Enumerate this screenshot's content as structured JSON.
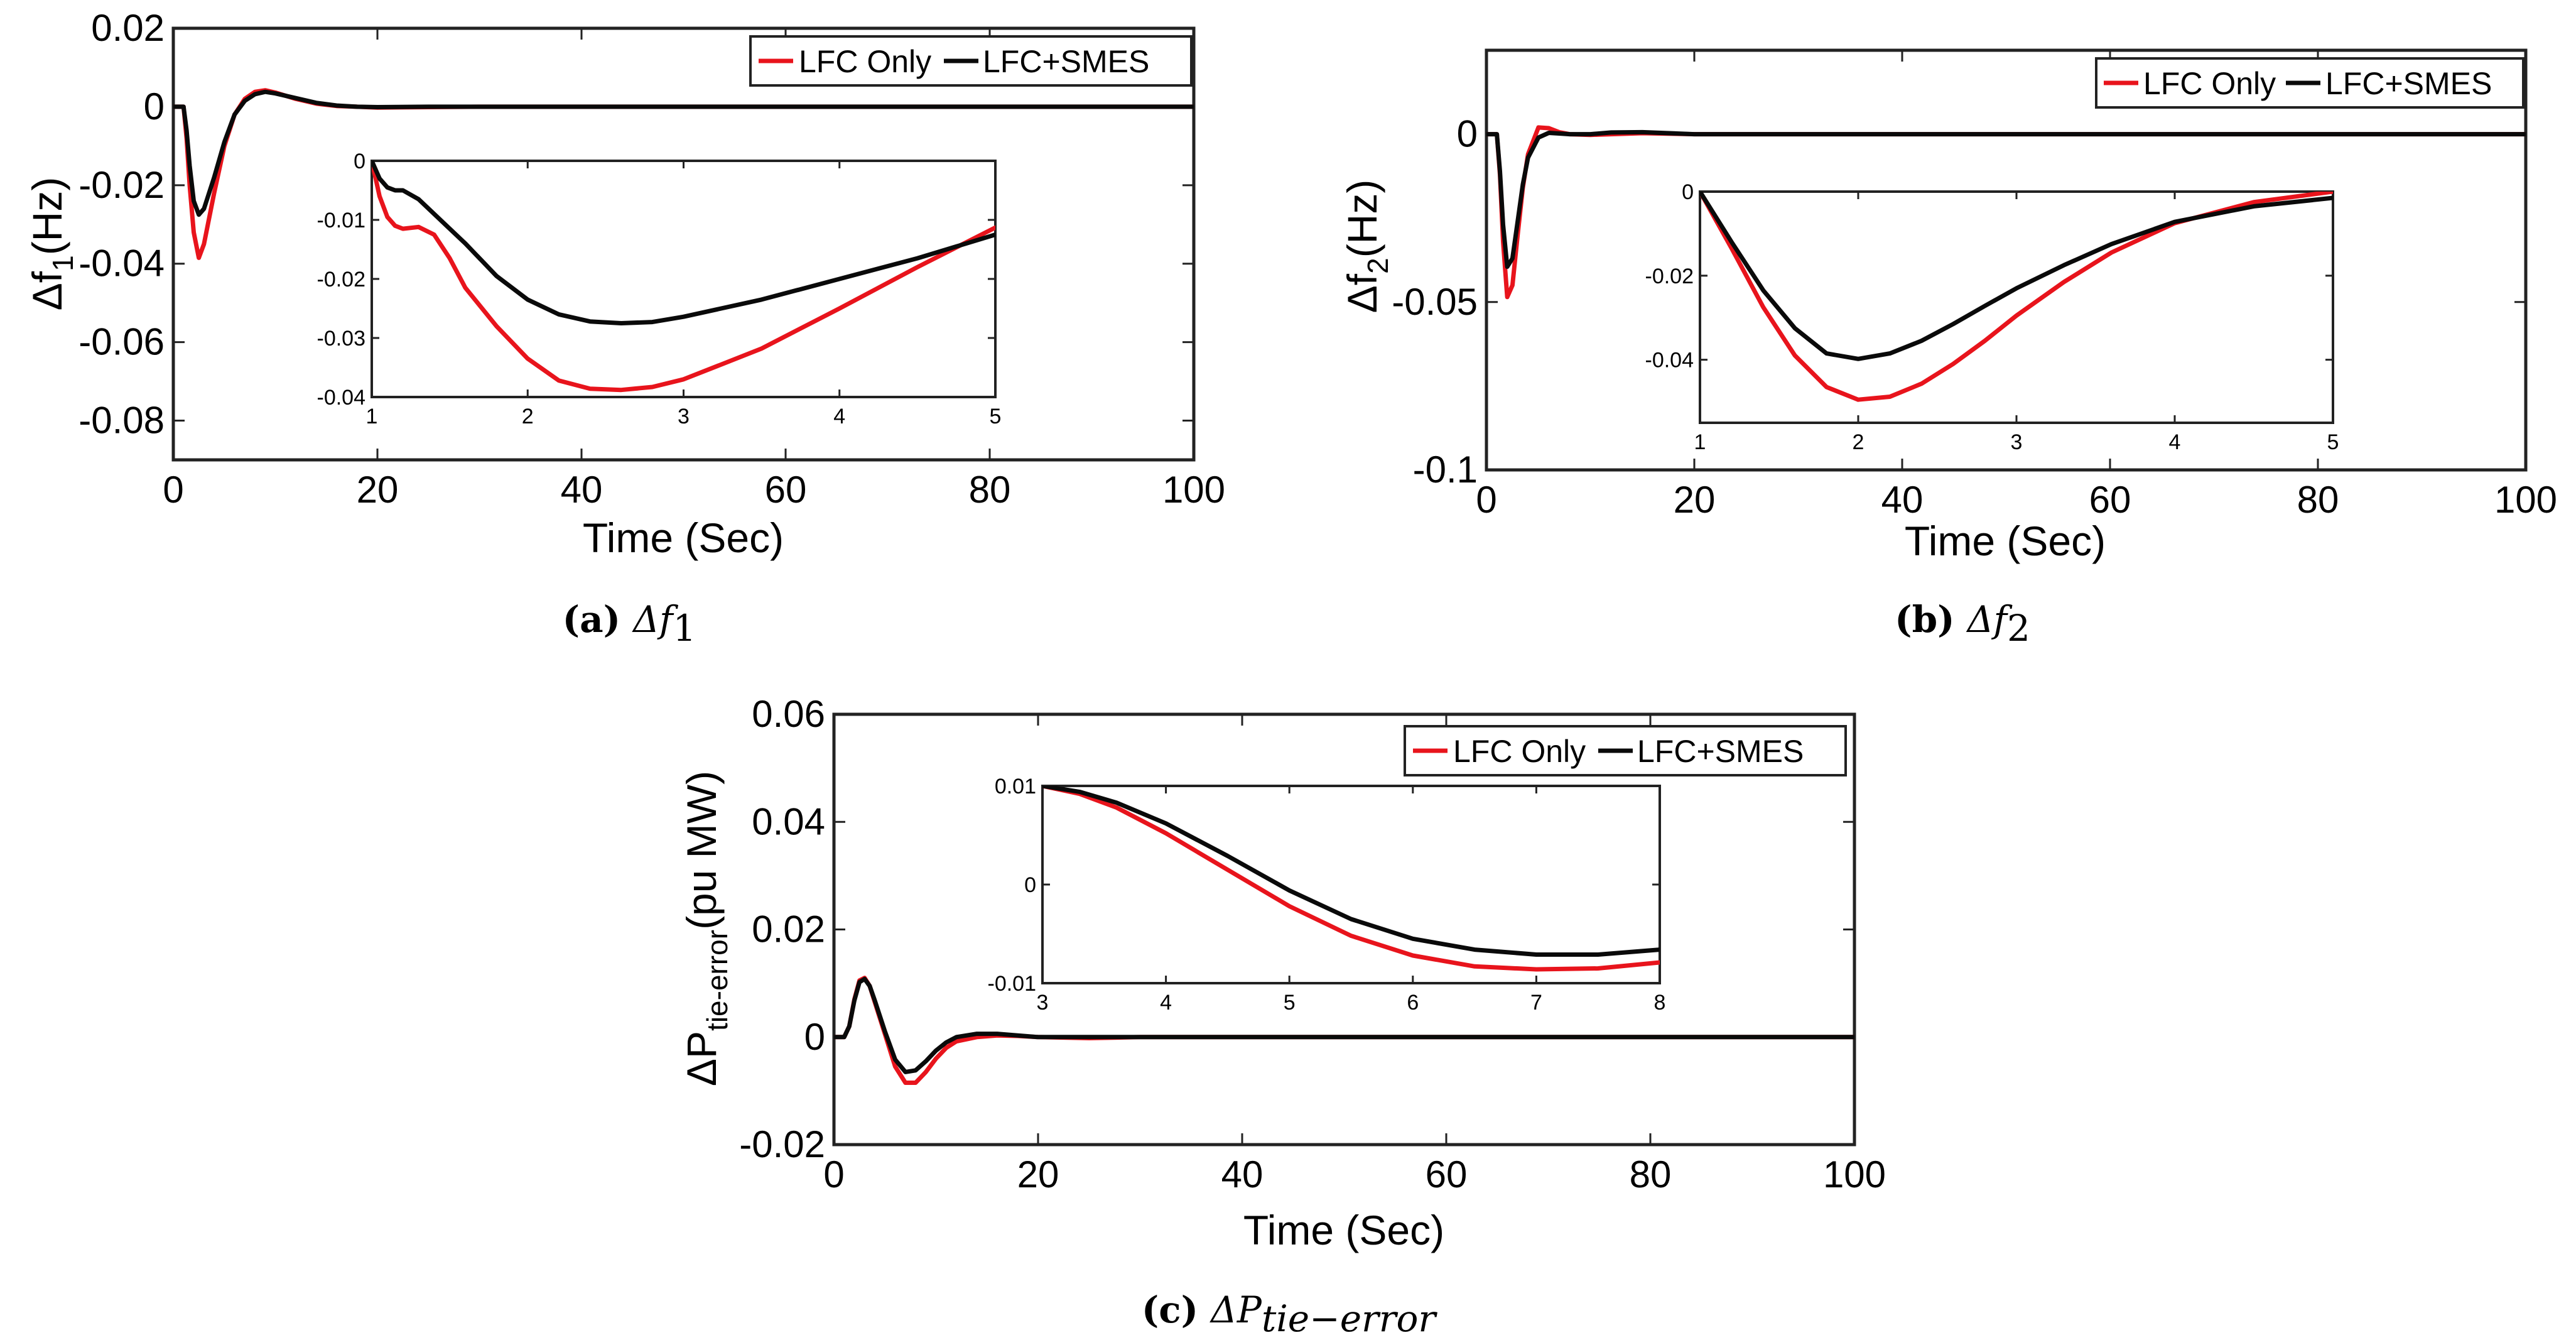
{
  "colors": {
    "lfc_only": "#e8141c",
    "lfc_smes": "#0a0a0a",
    "axes": "#222222"
  },
  "legend_labels": [
    "LFC Only",
    "LFC+SMES"
  ],
  "chart_data": [
    {
      "id": "a",
      "type": "line",
      "caption_label": "(a)",
      "caption_math": "Δf",
      "caption_sub": "1",
      "xlabel": "Time (Sec)",
      "ylabel": "Δf",
      "ylabel_sub": "1",
      "ylabel_tail": "(Hz)",
      "xlim": [
        0,
        100
      ],
      "ylim": [
        -0.09,
        0.02
      ],
      "xticks": [
        0,
        20,
        40,
        60,
        80,
        100
      ],
      "yticks": [
        -0.08,
        -0.06,
        -0.04,
        -0.02,
        0,
        0.02
      ],
      "xtick_labels": [
        "0",
        "20",
        "40",
        "60",
        "80",
        "100"
      ],
      "ytick_labels": [
        "-0.08",
        "-0.06",
        "-0.04",
        "-0.02",
        "0",
        "0.02"
      ],
      "legend": "top-right",
      "series": [
        {
          "name": "LFC Only",
          "x": [
            0,
            1,
            1.3,
            1.6,
            2,
            2.5,
            3,
            4,
            5,
            6,
            7,
            8,
            9,
            10,
            12,
            14,
            16,
            18,
            20,
            25,
            30,
            40,
            100
          ],
          "y": [
            0,
            0,
            -0.008,
            -0.02,
            -0.032,
            -0.0385,
            -0.035,
            -0.022,
            -0.01,
            -0.002,
            0.002,
            0.0038,
            0.0042,
            0.0036,
            0.002,
            0.0008,
            0.0002,
            0,
            -0.0002,
            -0.0001,
            0,
            0,
            0
          ]
        },
        {
          "name": "LFC+SMES",
          "x": [
            0,
            1,
            1.3,
            1.6,
            2,
            2.5,
            3,
            4,
            5,
            6,
            7,
            8,
            9,
            10,
            12,
            14,
            16,
            18,
            20,
            25,
            30,
            40,
            100
          ],
          "y": [
            0,
            0,
            -0.006,
            -0.015,
            -0.024,
            -0.0275,
            -0.026,
            -0.018,
            -0.009,
            -0.002,
            0.0015,
            0.0032,
            0.0038,
            0.0034,
            0.0022,
            0.001,
            0.0003,
            0,
            -0.0001,
            0,
            0,
            0,
            0
          ]
        }
      ],
      "inset": {
        "xlim": [
          1,
          5
        ],
        "ylim": [
          -0.04,
          0
        ],
        "xticks": [
          1,
          2,
          3,
          4,
          5
        ],
        "yticks": [
          -0.04,
          -0.03,
          -0.02,
          -0.01,
          0
        ],
        "xtick_labels": [
          "1",
          "2",
          "3",
          "4",
          "5"
        ],
        "ytick_labels": [
          "-0.04",
          "-0.03",
          "-0.02",
          "-0.01",
          "0"
        ],
        "series": [
          {
            "name": "LFC Only",
            "x": [
              1,
              1.05,
              1.1,
              1.15,
              1.2,
              1.3,
              1.4,
              1.5,
              1.6,
              1.8,
              2,
              2.2,
              2.4,
              2.6,
              2.8,
              3,
              3.5,
              4,
              4.5,
              5
            ],
            "y": [
              0,
              -0.006,
              -0.0095,
              -0.011,
              -0.0115,
              -0.0112,
              -0.0125,
              -0.0165,
              -0.0215,
              -0.028,
              -0.0335,
              -0.0372,
              -0.0386,
              -0.0388,
              -0.0383,
              -0.037,
              -0.0318,
              -0.025,
              -0.018,
              -0.0113
            ]
          },
          {
            "name": "LFC+SMES",
            "x": [
              1,
              1.05,
              1.1,
              1.15,
              1.2,
              1.3,
              1.4,
              1.5,
              1.6,
              1.8,
              2,
              2.2,
              2.4,
              2.6,
              2.8,
              3,
              3.5,
              4,
              4.5,
              5
            ],
            "y": [
              0,
              -0.003,
              -0.0045,
              -0.005,
              -0.005,
              -0.0065,
              -0.009,
              -0.0115,
              -0.014,
              -0.0195,
              -0.0235,
              -0.026,
              -0.0272,
              -0.0275,
              -0.0273,
              -0.0264,
              -0.0235,
              -0.02,
              -0.0165,
              -0.0125
            ]
          }
        ]
      }
    },
    {
      "id": "b",
      "type": "line",
      "caption_label": "(b)",
      "caption_math": "Δf",
      "caption_sub": "2",
      "xlabel": "Time (Sec)",
      "ylabel": "Δf",
      "ylabel_sub": "2",
      "ylabel_tail": "(Hz)",
      "xlim": [
        0,
        100
      ],
      "ylim": [
        -0.1,
        0.025
      ],
      "xticks": [
        0,
        20,
        40,
        60,
        80,
        100
      ],
      "yticks": [
        -0.1,
        -0.05,
        0
      ],
      "xtick_labels": [
        "0",
        "20",
        "40",
        "60",
        "80",
        "100"
      ],
      "ytick_labels": [
        "-0.1",
        "-0.05",
        "0"
      ],
      "legend": "top-right",
      "series": [
        {
          "name": "LFC Only",
          "x": [
            0,
            1,
            1.3,
            1.6,
            2,
            2.5,
            3,
            3.5,
            4,
            5,
            6,
            7,
            8,
            10,
            12,
            15,
            20,
            30,
            100
          ],
          "y": [
            0,
            0,
            -0.012,
            -0.032,
            -0.0485,
            -0.045,
            -0.03,
            -0.016,
            -0.006,
            0.002,
            0.0018,
            0.0006,
            0,
            -0.0002,
            0,
            0.0003,
            0,
            0,
            0
          ]
        },
        {
          "name": "LFC+SMES",
          "x": [
            0,
            1,
            1.3,
            1.6,
            2,
            2.5,
            3,
            3.5,
            4,
            5,
            6,
            7,
            8,
            10,
            12,
            15,
            20,
            30,
            100
          ],
          "y": [
            0,
            0,
            -0.011,
            -0.027,
            -0.0395,
            -0.037,
            -0.026,
            -0.015,
            -0.007,
            -0.001,
            0.0004,
            0.0002,
            0,
            0,
            0.0005,
            0.0006,
            0,
            0,
            0
          ]
        }
      ],
      "inset": {
        "xlim": [
          1,
          5
        ],
        "ylim": [
          -0.055,
          0
        ],
        "xticks": [
          1,
          2,
          3,
          4,
          5
        ],
        "yticks": [
          -0.04,
          -0.02,
          0
        ],
        "xtick_labels": [
          "1",
          "2",
          "3",
          "4",
          "5"
        ],
        "ytick_labels": [
          "-0.04",
          "-0.02",
          "0"
        ],
        "series": [
          {
            "name": "LFC Only",
            "x": [
              1,
              1.2,
              1.4,
              1.6,
              1.8,
              2,
              2.2,
              2.4,
              2.6,
              2.8,
              3,
              3.3,
              3.6,
              4,
              4.5,
              5
            ],
            "y": [
              0,
              -0.0135,
              -0.0275,
              -0.039,
              -0.0465,
              -0.0495,
              -0.0488,
              -0.0457,
              -0.041,
              -0.0355,
              -0.0295,
              -0.0215,
              -0.0145,
              -0.0075,
              -0.0025,
              0
            ]
          },
          {
            "name": "LFC+SMES",
            "x": [
              1,
              1.2,
              1.4,
              1.6,
              1.8,
              2,
              2.2,
              2.4,
              2.6,
              2.8,
              3,
              3.3,
              3.6,
              4,
              4.5,
              5
            ],
            "y": [
              0,
              -0.012,
              -0.0235,
              -0.0325,
              -0.0385,
              -0.0398,
              -0.0385,
              -0.0355,
              -0.0315,
              -0.0272,
              -0.023,
              -0.0175,
              -0.0125,
              -0.0072,
              -0.0035,
              -0.0015
            ]
          }
        ]
      }
    },
    {
      "id": "c",
      "type": "line",
      "caption_label": "(c)",
      "caption_math": "ΔP",
      "caption_sub": "tie−error",
      "xlabel": "Time (Sec)",
      "ylabel": "ΔP",
      "ylabel_sub": "tie-error",
      "ylabel_tail": "(pu MW)",
      "xlim": [
        0,
        100
      ],
      "ylim": [
        -0.02,
        0.06
      ],
      "xticks": [
        0,
        20,
        40,
        60,
        80,
        100
      ],
      "yticks": [
        -0.02,
        0,
        0.02,
        0.04,
        0.06
      ],
      "xtick_labels": [
        "0",
        "20",
        "40",
        "60",
        "80",
        "100"
      ],
      "ytick_labels": [
        "-0.02",
        "0",
        "0.02",
        "0.04",
        "0.06"
      ],
      "legend": "top-right",
      "series": [
        {
          "name": "LFC Only",
          "x": [
            0,
            1,
            1.5,
            2,
            2.5,
            3,
            3.5,
            4,
            5,
            6,
            7,
            8,
            9,
            10,
            11,
            12,
            14,
            16,
            18,
            20,
            25,
            30,
            100
          ],
          "y": [
            0,
            0,
            0.002,
            0.007,
            0.0105,
            0.011,
            0.0095,
            0.0065,
            0.0005,
            -0.0055,
            -0.0085,
            -0.0085,
            -0.0065,
            -0.004,
            -0.002,
            -0.0008,
            0,
            0.0003,
            0.0002,
            0,
            -0.0002,
            0,
            0
          ]
        },
        {
          "name": "LFC+SMES",
          "x": [
            0,
            1,
            1.5,
            2,
            2.5,
            3,
            3.5,
            4,
            5,
            6,
            7,
            8,
            9,
            10,
            11,
            12,
            14,
            16,
            18,
            20,
            25,
            30,
            100
          ],
          "y": [
            0,
            0,
            0.002,
            0.0068,
            0.0102,
            0.0108,
            0.0095,
            0.0068,
            0.001,
            -0.0042,
            -0.0065,
            -0.0062,
            -0.0045,
            -0.0025,
            -0.001,
            0,
            0.0006,
            0.0006,
            0.0003,
            0,
            0,
            0,
            0
          ]
        }
      ],
      "inset": {
        "xlim": [
          3,
          8
        ],
        "ylim": [
          -0.01,
          0.01
        ],
        "xticks": [
          3,
          4,
          5,
          6,
          7,
          8
        ],
        "yticks": [
          -0.01,
          0,
          0.01
        ],
        "xtick_labels": [
          "3",
          "4",
          "5",
          "6",
          "7",
          "8"
        ],
        "ytick_labels": [
          "-0.01",
          "0",
          "0.01"
        ],
        "series": [
          {
            "name": "LFC Only",
            "x": [
              3,
              3.3,
              3.6,
              4,
              4.5,
              5,
              5.5,
              6,
              6.5,
              7,
              7.5,
              8
            ],
            "y": [
              0.01,
              0.0092,
              0.0078,
              0.0052,
              0.0015,
              -0.0022,
              -0.0052,
              -0.0072,
              -0.0083,
              -0.0086,
              -0.0085,
              -0.0079
            ]
          },
          {
            "name": "LFC+SMES",
            "x": [
              3,
              3.3,
              3.6,
              4,
              4.5,
              5,
              5.5,
              6,
              6.5,
              7,
              7.5,
              8
            ],
            "y": [
              0.01,
              0.0094,
              0.0083,
              0.0062,
              0.0029,
              -0.0006,
              -0.0035,
              -0.0055,
              -0.0066,
              -0.0071,
              -0.0071,
              -0.0066
            ]
          }
        ]
      }
    }
  ]
}
